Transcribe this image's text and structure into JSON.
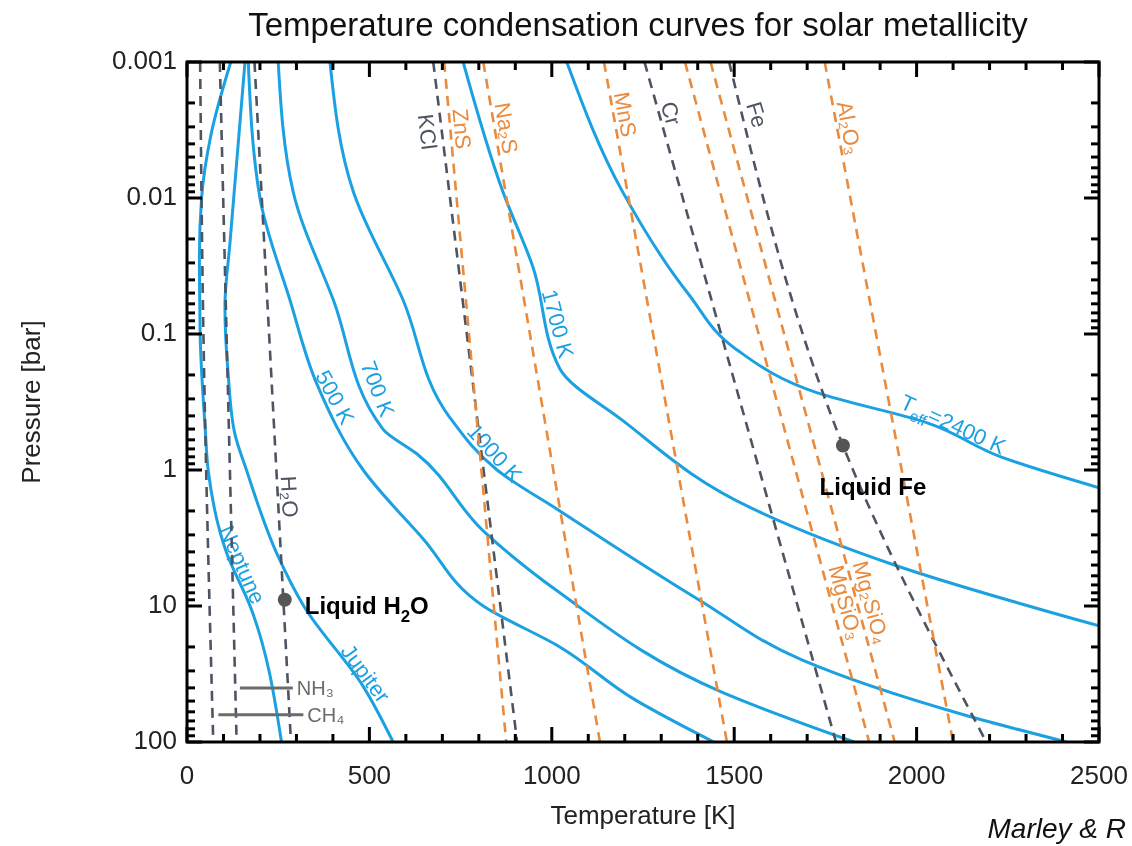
{
  "chart_data": {
    "type": "line",
    "title": "Temperature condensation curves for solar metallicity",
    "xlabel": "Temperature [K]",
    "ylabel": "Pressure [bar]",
    "log": "y",
    "xlim": [
      0,
      2500
    ],
    "ylim": [
      100,
      0.001
    ],
    "xticks": [
      0,
      {
        "value": 100,
        "label": null
      },
      {
        "value": 200,
        "label": null
      },
      {
        "value": 300,
        "label": null
      },
      {
        "value": 400,
        "label": null
      },
      500,
      {
        "value": 600,
        "label": null
      },
      {
        "value": 700,
        "label": null
      },
      {
        "value": 800,
        "label": null
      },
      {
        "value": 900,
        "label": null
      },
      1000,
      {
        "value": 1100,
        "label": null
      },
      {
        "value": 1200,
        "label": null
      },
      {
        "value": 1300,
        "label": null
      },
      {
        "value": 1400,
        "label": null
      },
      1500,
      {
        "value": 1600,
        "label": null
      },
      {
        "value": 1700,
        "label": null
      },
      {
        "value": 1800,
        "label": null
      },
      {
        "value": 1900,
        "label": null
      },
      2000,
      {
        "value": 2100,
        "label": null
      },
      {
        "value": 2200,
        "label": null
      },
      {
        "value": 2300,
        "label": null
      },
      {
        "value": 2400,
        "label": null
      },
      2500
    ],
    "yticks": [
      0.001,
      {
        "value": 0.002,
        "label": null
      },
      {
        "value": 0.003,
        "label": null
      },
      {
        "value": 0.004,
        "label": null
      },
      {
        "value": 0.005,
        "label": null
      },
      {
        "value": 0.006,
        "label": null
      },
      {
        "value": 0.007,
        "label": null
      },
      {
        "value": 0.008,
        "label": null
      },
      {
        "value": 0.009,
        "label": null
      },
      0.01,
      {
        "value": 0.02,
        "label": null
      },
      {
        "value": 0.03,
        "label": null
      },
      {
        "value": 0.04,
        "label": null
      },
      {
        "value": 0.05,
        "label": null
      },
      {
        "value": 0.06,
        "label": null
      },
      {
        "value": 0.07,
        "label": null
      },
      {
        "value": 0.08,
        "label": null
      },
      {
        "value": 0.09,
        "label": null
      },
      0.1,
      {
        "value": 0.2,
        "label": null
      },
      {
        "value": 0.3,
        "label": null
      },
      {
        "value": 0.4,
        "label": null
      },
      {
        "value": 0.5,
        "label": null
      },
      {
        "value": 0.6,
        "label": null
      },
      {
        "value": 0.7,
        "label": null
      },
      {
        "value": 0.8,
        "label": null
      },
      {
        "value": 0.9,
        "label": null
      },
      1,
      {
        "value": 2,
        "label": null
      },
      {
        "value": 3,
        "label": null
      },
      {
        "value": 4,
        "label": null
      },
      {
        "value": 5,
        "label": null
      },
      {
        "value": 6,
        "label": null
      },
      {
        "value": 7,
        "label": null
      },
      {
        "value": 8,
        "label": null
      },
      {
        "value": 9,
        "label": null
      },
      10,
      {
        "value": 20,
        "label": null
      },
      {
        "value": 30,
        "label": null
      },
      {
        "value": 40,
        "label": null
      },
      {
        "value": 50,
        "label": null
      },
      {
        "value": 60,
        "label": null
      },
      {
        "value": 70,
        "label": null
      },
      {
        "value": 80,
        "label": null
      },
      {
        "value": 90,
        "label": null
      },
      100
    ],
    "series": [
      {
        "name": "Neptune",
        "color": "#1ba1e2",
        "line_style": "solid",
        "x": [
          120,
          66,
          40,
          34,
          36,
          50,
          58,
          109,
          173,
          259
        ],
        "values": [
          0.001,
          0.0034,
          0.01,
          0.027,
          0.1,
          0.5,
          1,
          4.1,
          10,
          100
        ]
      },
      {
        "name": "Jupiter",
        "color": "#1ba1e2",
        "line_style": "solid",
        "x": [
          159,
          118,
          104,
          113,
          131,
          163,
          246,
          320,
          483,
          565
        ],
        "values": [
          0.001,
          0.021,
          0.063,
          0.2,
          0.54,
          1,
          4.1,
          10,
          39,
          100
        ]
      },
      {
        "name": "500 K",
        "color": "#1ba1e2",
        "line_style": "solid",
        "x": [
          168,
          200,
          282,
          355,
          483,
          647,
          812,
          1022,
          1223,
          1444
        ],
        "values": [
          0.001,
          0.01,
          0.056,
          0.23,
          1,
          3.2,
          10,
          20,
          48,
          100
        ]
      },
      {
        "name": "700 K",
        "color": "#1ba1e2",
        "line_style": "solid",
        "x": [
          250,
          291,
          401,
          537,
          630,
          812,
          1022,
          1466,
          1829
        ],
        "values": [
          0.001,
          0.009,
          0.056,
          0.5,
          0.76,
          2.8,
          8,
          43,
          100
        ]
      },
      {
        "name": "1000 K",
        "color": "#1ba1e2",
        "line_style": "solid",
        "x": [
          392,
          456,
          592,
          720,
          850,
          1022,
          1406,
          1687,
          2129,
          2411
        ],
        "values": [
          0.001,
          0.009,
          0.056,
          0.41,
          1,
          2,
          9.1,
          25,
          63,
          100
        ]
      },
      {
        "name": "1700 K",
        "color": "#1ba1e2",
        "line_style": "solid",
        "x": [
          757,
          866,
          948,
          1022,
          1193,
          1546,
          1949,
          2500
        ],
        "values": [
          0.001,
          0.009,
          0.032,
          0.18,
          0.43,
          1.9,
          5.1,
          14
        ]
      },
      {
        "name": "T$_{eff}$=2400 K",
        "color": "#1ba1e2",
        "line_style": "solid",
        "x": [
          1041,
          1193,
          1375,
          1506,
          1726,
          2029,
          2231,
          2500
        ],
        "values": [
          0.001,
          0.0089,
          0.051,
          0.13,
          0.27,
          0.45,
          0.8,
          1.35
        ]
      },
      {
        "color": "#4d5563",
        "line_style": "dashed",
        "x": [
          36,
          45,
          72
        ],
        "values": [
          0.001,
          0.1,
          100
        ]
      },
      {
        "color": "#4d5563",
        "line_style": "dashed",
        "x": [
          90,
          136
        ],
        "values": [
          0.001,
          100
        ]
      },
      {
        "name": "H₂O",
        "color": "#4d5563",
        "line_style": "dashed",
        "x": [
          185,
          285
        ],
        "values": [
          0.001,
          100
        ]
      },
      {
        "name": "KCl",
        "color": "#4d5563",
        "line_style": "dashed",
        "x": [
          675,
          905
        ],
        "values": [
          0.001,
          100
        ]
      },
      {
        "name": "ZnS",
        "color": "#e98a3d",
        "line_style": "dashed",
        "x": [
          705,
          875
        ],
        "values": [
          0.001,
          100
        ]
      },
      {
        "name": "Na₂S",
        "color": "#e98a3d",
        "line_style": "dashed",
        "x": [
          812,
          1132
        ],
        "values": [
          0.001,
          100
        ]
      },
      {
        "name": "MnS",
        "color": "#e98a3d",
        "line_style": "dashed",
        "x": [
          1143,
          1480
        ],
        "values": [
          0.001,
          100
        ]
      },
      {
        "name": "Cr",
        "color": "#4d5563",
        "line_style": "dashed",
        "x": [
          1254,
          1779
        ],
        "values": [
          0.001,
          100
        ]
      },
      {
        "name": "MgSiO₃",
        "color": "#e98a3d",
        "line_style": "dashed",
        "x": [
          1365,
          1870
        ],
        "values": [
          0.001,
          100
        ]
      },
      {
        "name": "Mg₂SiO₄",
        "color": "#e98a3d",
        "line_style": "dashed",
        "x": [
          1435,
          1940
        ],
        "values": [
          0.001,
          100
        ]
      },
      {
        "name": "Fe",
        "color": "#4d5563",
        "line_style": "dashed",
        "x": [
          1486,
          1798,
          2191
        ],
        "values": [
          0.001,
          0.66,
          100
        ]
      },
      {
        "name": "Al₂O₃",
        "color": "#e98a3d",
        "line_style": "dashed",
        "x": [
          1748,
          2100
        ],
        "values": [
          0.001,
          100
        ]
      },
      {
        "name": "NH₃",
        "color": "#6b6b6b",
        "line_style": "solid",
        "x": [
          145,
          290
        ],
        "values": [
          40,
          40
        ]
      },
      {
        "name": "CH₄",
        "color": "#6b6b6b",
        "line_style": "solid",
        "x": [
          86,
          319
        ],
        "values": [
          63,
          63
        ]
      },
      {
        "type": "scatter",
        "marker": "circle",
        "color": "#555555",
        "x": [
          268,
          1798
        ],
        "values": [
          9,
          0.66
        ]
      }
    ],
    "annotations": [
      {
        "text": "Liquid H$_{2}$O",
        "x": 268,
        "y": 9
      },
      {
        "text": "Liquid Fe",
        "x": 1798,
        "y": 0.66
      },
      "Marley & R"
    ]
  }
}
